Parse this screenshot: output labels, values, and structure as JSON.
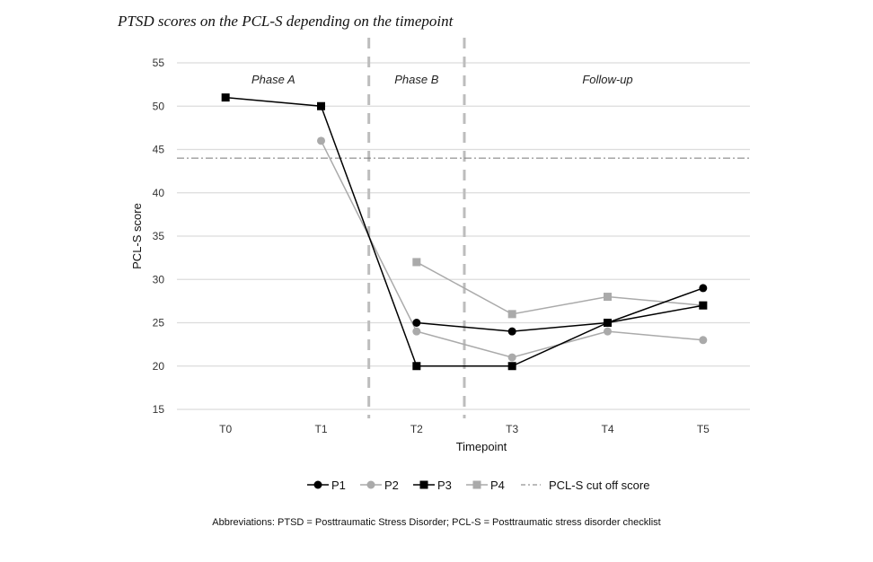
{
  "title": "PTSD scores on the PCL-S depending on the timepoint",
  "abbreviations": "Abbreviations: PTSD = Posttraumatic Stress Disorder; PCL-S = Posttraumatic stress disorder checklist",
  "chart_data": {
    "type": "line",
    "xlabel": "Timepoint",
    "ylabel": "PCL-S score",
    "ylim": [
      15,
      55
    ],
    "yticks": [
      15,
      20,
      25,
      30,
      35,
      40,
      45,
      50,
      55
    ],
    "categories": [
      "T0",
      "T1",
      "T2",
      "T3",
      "T4",
      "T5"
    ],
    "grid": true,
    "legend_position": "bottom",
    "phases": [
      {
        "label": "Phase A",
        "from": "T0",
        "to": "T1"
      },
      {
        "label": "Phase B",
        "from": "T2",
        "to": "T2"
      },
      {
        "label": "Follow-up",
        "from": "T3",
        "to": "T5"
      }
    ],
    "cutoff": {
      "name": "PCL-S cut off score",
      "value": 44
    },
    "series": [
      {
        "name": "P1",
        "marker": "circle",
        "color": "#000000",
        "values": [
          null,
          null,
          25,
          24,
          25,
          29
        ]
      },
      {
        "name": "P2",
        "marker": "circle",
        "color": "#aaaaaa",
        "values": [
          null,
          46,
          24,
          21,
          24,
          23
        ]
      },
      {
        "name": "P3",
        "marker": "square",
        "color": "#000000",
        "values": [
          51,
          50,
          20,
          20,
          25,
          27
        ]
      },
      {
        "name": "P4",
        "marker": "square",
        "color": "#aaaaaa",
        "values": [
          null,
          null,
          32,
          26,
          28,
          27
        ]
      }
    ]
  }
}
